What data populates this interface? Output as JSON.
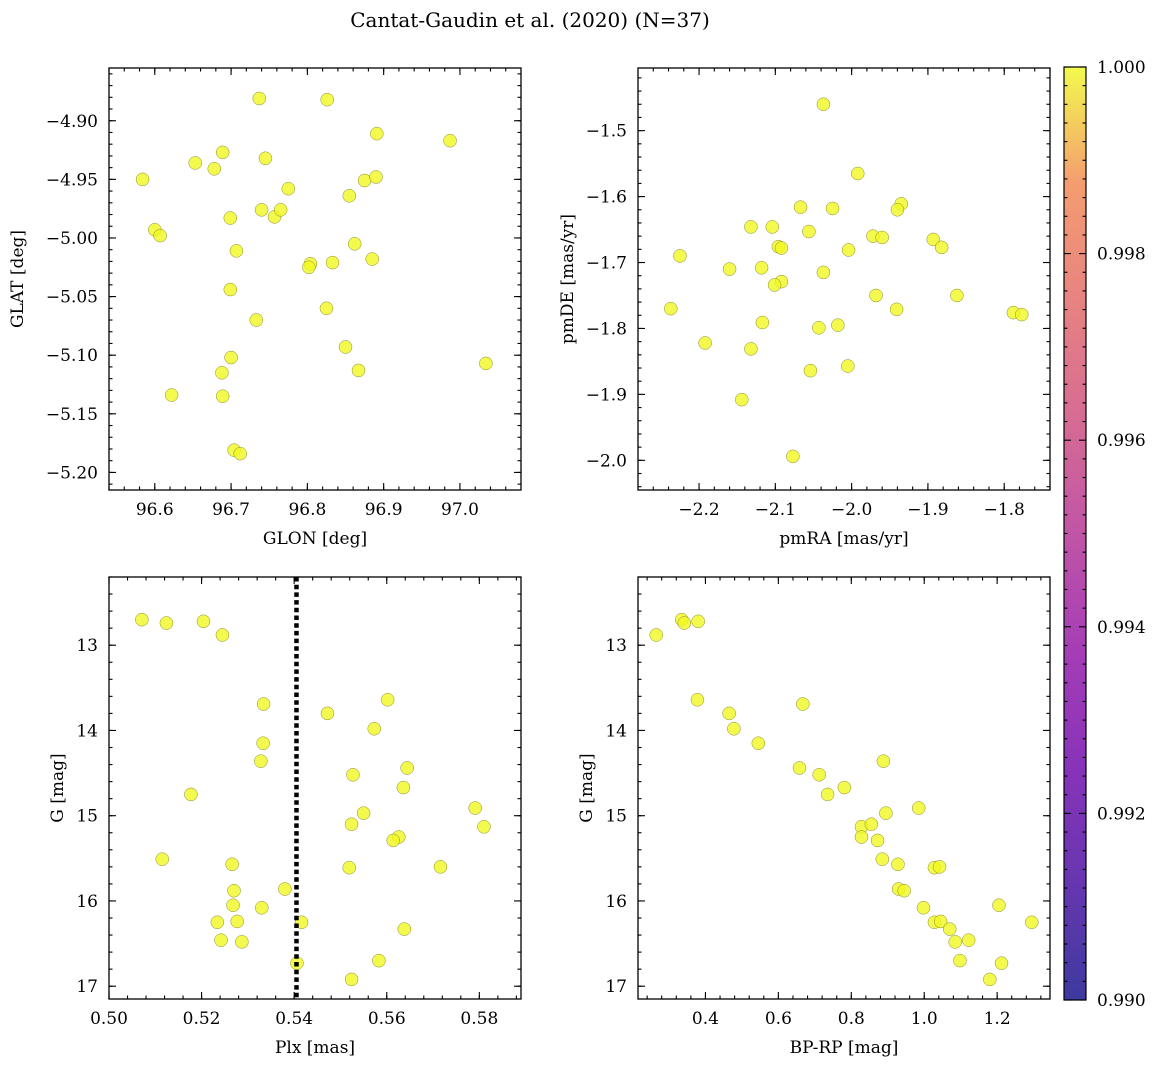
{
  "title": "Cantat-Gaudin et al. (2020) (N=37)",
  "colorbar": {
    "min": 0.99,
    "max": 1.0,
    "ticks": [
      "0.990",
      "0.992",
      "0.994",
      "0.996",
      "0.998",
      "1.000"
    ],
    "colormap": "plasma",
    "point_color": "#f0f921"
  },
  "chart_data": [
    {
      "type": "scatter",
      "xlabel": "GLON [deg]",
      "ylabel": "GLAT [deg]",
      "xlim": [
        96.54,
        97.08
      ],
      "ylim": [
        -5.215,
        -4.855
      ],
      "x_invert": false,
      "y_invert": false,
      "xticks": [
        96.6,
        96.7,
        96.8,
        96.9,
        97.0
      ],
      "xtick_labels": [
        "96.6",
        "96.7",
        "96.8",
        "96.9",
        "97.0"
      ],
      "yticks": [
        -4.9,
        -4.95,
        -5.0,
        -5.05,
        -5.1,
        -5.15,
        -5.2
      ],
      "ytick_labels": [
        "−4.90",
        "−4.95",
        "−5.00",
        "−5.05",
        "−5.10",
        "−5.15",
        "−5.20"
      ],
      "points": [
        [
          96.584,
          -4.95
        ],
        [
          96.6,
          -4.993
        ],
        [
          96.607,
          -4.998
        ],
        [
          96.622,
          -5.134
        ],
        [
          96.653,
          -4.936
        ],
        [
          96.678,
          -4.941
        ],
        [
          96.689,
          -4.927
        ],
        [
          96.688,
          -5.115
        ],
        [
          96.689,
          -5.135
        ],
        [
          96.699,
          -4.983
        ],
        [
          96.699,
          -5.044
        ],
        [
          96.7,
          -5.102
        ],
        [
          96.704,
          -5.181
        ],
        [
          96.707,
          -5.011
        ],
        [
          96.712,
          -5.184
        ],
        [
          96.737,
          -4.881
        ],
        [
          96.733,
          -5.07
        ],
        [
          96.74,
          -4.976
        ],
        [
          96.745,
          -4.932
        ],
        [
          96.757,
          -4.982
        ],
        [
          96.765,
          -4.976
        ],
        [
          96.775,
          -4.958
        ],
        [
          96.804,
          -5.022
        ],
        [
          96.802,
          -5.025
        ],
        [
          96.826,
          -4.882
        ],
        [
          96.825,
          -5.06
        ],
        [
          96.833,
          -5.021
        ],
        [
          96.85,
          -5.093
        ],
        [
          96.855,
          -4.964
        ],
        [
          96.862,
          -5.005
        ],
        [
          96.867,
          -5.113
        ],
        [
          96.875,
          -4.951
        ],
        [
          96.885,
          -5.018
        ],
        [
          96.89,
          -4.948
        ],
        [
          96.891,
          -4.911
        ],
        [
          96.987,
          -4.917
        ],
        [
          97.034,
          -5.107
        ]
      ]
    },
    {
      "type": "scatter",
      "xlabel": "pmRA [mas/yr]",
      "ylabel": "pmDE [mas/yr]",
      "xlim": [
        -2.28,
        -1.74
      ],
      "ylim": [
        -2.045,
        -1.405
      ],
      "x_invert": false,
      "y_invert": false,
      "xticks": [
        -2.2,
        -2.1,
        -2.0,
        -1.9,
        -1.8
      ],
      "xtick_labels": [
        "−2.2",
        "−2.1",
        "−2.0",
        "−1.9",
        "−1.8"
      ],
      "yticks": [
        -1.5,
        -1.6,
        -1.7,
        -1.8,
        -1.9,
        -2.0
      ],
      "ytick_labels": [
        "−1.5",
        "−1.6",
        "−1.7",
        "−1.8",
        "−1.9",
        "−2.0"
      ],
      "points": [
        [
          -2.037,
          -1.46
        ],
        [
          -1.992,
          -1.565
        ],
        [
          -2.067,
          -1.616
        ],
        [
          -2.025,
          -1.618
        ],
        [
          -1.935,
          -1.611
        ],
        [
          -1.94,
          -1.62
        ],
        [
          -2.132,
          -1.646
        ],
        [
          -2.104,
          -1.646
        ],
        [
          -2.056,
          -1.653
        ],
        [
          -1.972,
          -1.66
        ],
        [
          -1.96,
          -1.662
        ],
        [
          -1.893,
          -1.665
        ],
        [
          -2.096,
          -1.676
        ],
        [
          -2.092,
          -1.678
        ],
        [
          -2.004,
          -1.681
        ],
        [
          -1.882,
          -1.677
        ],
        [
          -2.225,
          -1.69
        ],
        [
          -2.16,
          -1.71
        ],
        [
          -2.118,
          -1.708
        ],
        [
          -2.037,
          -1.715
        ],
        [
          -2.092,
          -1.729
        ],
        [
          -2.101,
          -1.734
        ],
        [
          -1.968,
          -1.75
        ],
        [
          -1.862,
          -1.75
        ],
        [
          -2.237,
          -1.77
        ],
        [
          -1.941,
          -1.771
        ],
        [
          -1.788,
          -1.776
        ],
        [
          -1.777,
          -1.779
        ],
        [
          -2.117,
          -1.791
        ],
        [
          -2.018,
          -1.795
        ],
        [
          -2.043,
          -1.799
        ],
        [
          -2.192,
          -1.822
        ],
        [
          -2.132,
          -1.831
        ],
        [
          -2.054,
          -1.864
        ],
        [
          -2.005,
          -1.857
        ],
        [
          -2.144,
          -1.908
        ],
        [
          -2.077,
          -1.994
        ]
      ]
    },
    {
      "type": "scatter",
      "xlabel": "Plx [mas]",
      "ylabel": "G [mag]",
      "xlim": [
        0.5,
        0.589
      ],
      "ylim": [
        17.15,
        12.2
      ],
      "x_invert": false,
      "y_invert": true,
      "xticks": [
        0.5,
        0.52,
        0.54,
        0.56,
        0.58
      ],
      "xtick_labels": [
        "0.50",
        "0.52",
        "0.54",
        "0.56",
        "0.58"
      ],
      "yticks": [
        13,
        14,
        15,
        16,
        17
      ],
      "ytick_labels": [
        "13",
        "14",
        "15",
        "16",
        "17"
      ],
      "vline": 0.5405,
      "points": [
        [
          0.5071,
          12.7
        ],
        [
          0.5124,
          12.74
        ],
        [
          0.5204,
          12.72
        ],
        [
          0.5245,
          12.88
        ],
        [
          0.5334,
          13.69
        ],
        [
          0.5472,
          13.8
        ],
        [
          0.5333,
          14.15
        ],
        [
          0.5328,
          14.36
        ],
        [
          0.5177,
          14.75
        ],
        [
          0.5602,
          13.64
        ],
        [
          0.5573,
          13.98
        ],
        [
          0.5644,
          14.44
        ],
        [
          0.5527,
          14.52
        ],
        [
          0.5636,
          14.67
        ],
        [
          0.555,
          14.97
        ],
        [
          0.5524,
          15.1
        ],
        [
          0.5791,
          14.91
        ],
        [
          0.581,
          15.13
        ],
        [
          0.5626,
          15.25
        ],
        [
          0.5614,
          15.29
        ],
        [
          0.5115,
          15.51
        ],
        [
          0.5266,
          15.57
        ],
        [
          0.5519,
          15.61
        ],
        [
          0.5716,
          15.6
        ],
        [
          0.527,
          15.88
        ],
        [
          0.538,
          15.86
        ],
        [
          0.5268,
          16.05
        ],
        [
          0.533,
          16.08
        ],
        [
          0.5234,
          16.25
        ],
        [
          0.5277,
          16.24
        ],
        [
          0.5416,
          16.25
        ],
        [
          0.5638,
          16.33
        ],
        [
          0.5242,
          16.46
        ],
        [
          0.5287,
          16.48
        ],
        [
          0.5583,
          16.7
        ],
        [
          0.5406,
          16.73
        ],
        [
          0.5524,
          16.92
        ]
      ]
    },
    {
      "type": "scatter",
      "xlabel": "BP-RP [mag]",
      "ylabel": "G [mag]",
      "xlim": [
        0.215,
        1.345
      ],
      "ylim": [
        17.15,
        12.2
      ],
      "x_invert": false,
      "y_invert": true,
      "xticks": [
        0.4,
        0.6,
        0.8,
        1.0,
        1.2
      ],
      "xtick_labels": [
        "0.4",
        "0.6",
        "0.8",
        "1.0",
        "1.2"
      ],
      "yticks": [
        13,
        14,
        15,
        16,
        17
      ],
      "ytick_labels": [
        "13",
        "14",
        "15",
        "16",
        "17"
      ],
      "points": [
        [
          0.265,
          12.88
        ],
        [
          0.335,
          12.7
        ],
        [
          0.342,
          12.74
        ],
        [
          0.38,
          12.72
        ],
        [
          0.378,
          13.64
        ],
        [
          0.465,
          13.8
        ],
        [
          0.478,
          13.98
        ],
        [
          0.545,
          14.15
        ],
        [
          0.667,
          13.69
        ],
        [
          0.658,
          14.44
        ],
        [
          0.712,
          14.52
        ],
        [
          0.735,
          14.75
        ],
        [
          0.781,
          14.67
        ],
        [
          0.888,
          14.36
        ],
        [
          0.985,
          14.91
        ],
        [
          0.895,
          14.97
        ],
        [
          0.828,
          15.13
        ],
        [
          0.855,
          15.1
        ],
        [
          0.828,
          15.25
        ],
        [
          0.872,
          15.29
        ],
        [
          0.885,
          15.51
        ],
        [
          0.928,
          15.57
        ],
        [
          1.028,
          15.61
        ],
        [
          1.042,
          15.6
        ],
        [
          0.93,
          15.86
        ],
        [
          0.945,
          15.88
        ],
        [
          0.998,
          16.08
        ],
        [
          1.205,
          16.05
        ],
        [
          1.028,
          16.25
        ],
        [
          1.045,
          16.24
        ],
        [
          1.295,
          16.25
        ],
        [
          1.07,
          16.33
        ],
        [
          1.122,
          16.46
        ],
        [
          1.085,
          16.48
        ],
        [
          1.098,
          16.7
        ],
        [
          1.212,
          16.73
        ],
        [
          1.18,
          16.92
        ]
      ]
    }
  ]
}
